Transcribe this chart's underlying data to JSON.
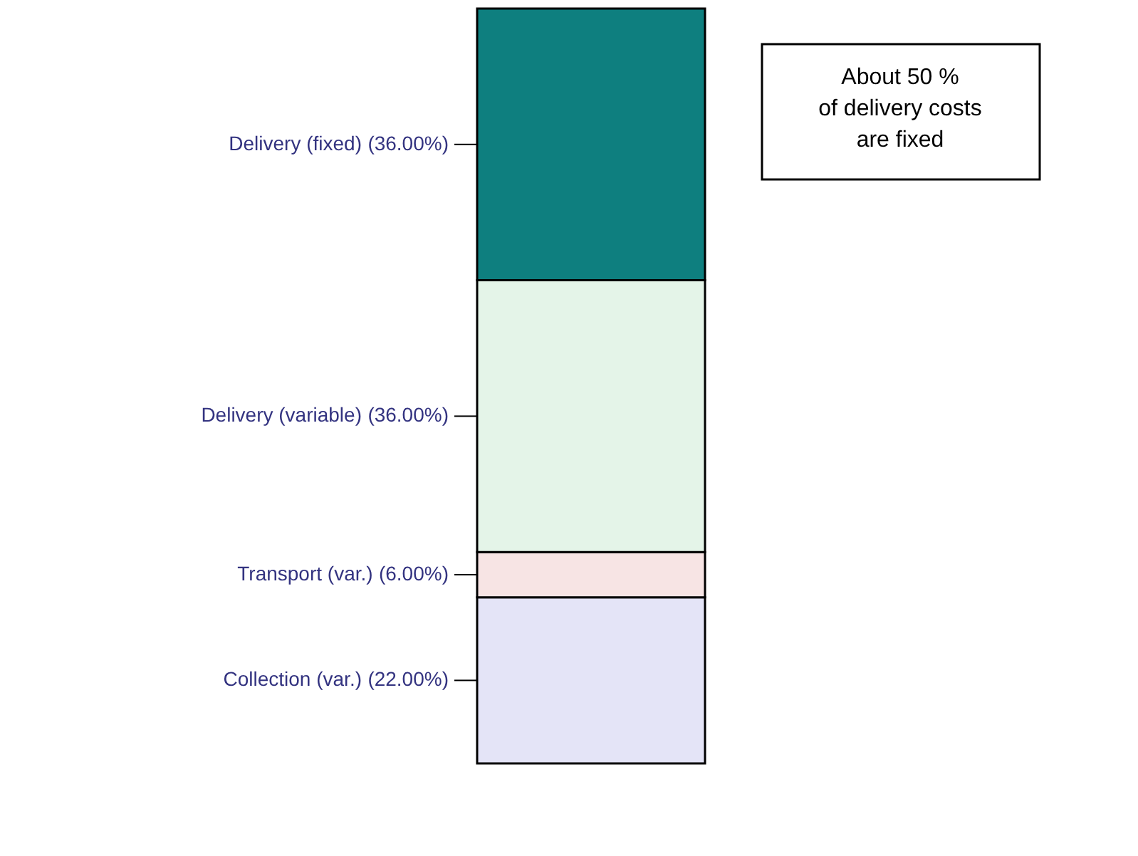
{
  "chart_data": {
    "type": "bar",
    "stacked": true,
    "categories": [
      null
    ],
    "series": [
      {
        "color": "#e4e4f7",
        "values": [
          22
        ],
        "value_labels": [
          "(22.00%)"
        ]
      },
      {
        "color": "#f7e4e4",
        "values": [
          6
        ],
        "value_labels": [
          "(6.00%)"
        ]
      },
      {
        "color": "#e4f4e8",
        "values": [
          36
        ],
        "value_labels": [
          "(36.00%)"
        ]
      },
      {
        "color": "#0e7f7f",
        "values": [
          36
        ],
        "value_labels": [
          "(36.00%)"
        ]
      }
    ],
    "annotations": [
      "Collection (var.)",
      "Transport (var.)",
      "Delivery (variable)",
      "Delivery (fixed)",
      "About 50 %\nof delivery costs\nare fixed"
    ]
  }
}
